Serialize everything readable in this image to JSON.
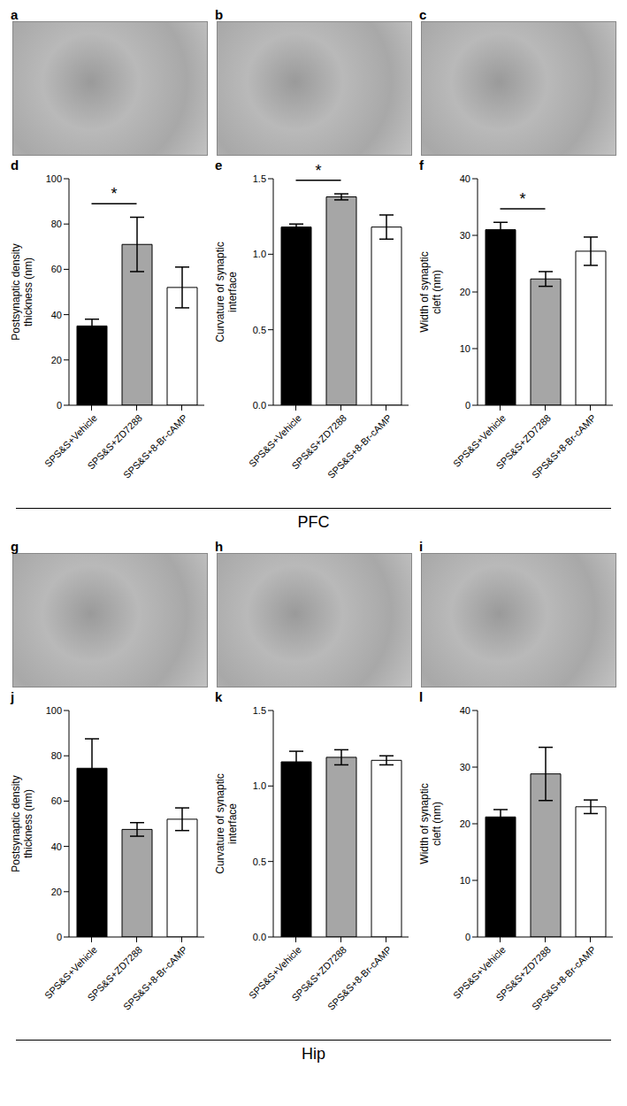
{
  "sections": [
    {
      "label": "PFC",
      "images": [
        "a",
        "b",
        "c"
      ]
    },
    {
      "label": "Hip",
      "images": [
        "g",
        "h",
        "i"
      ]
    }
  ],
  "chart_data": [
    {
      "type": "bar",
      "title": "d",
      "y_label": "Postsynaptic density thickness (nm)",
      "categories": [
        "SPS&S+Vehicle",
        "SPS&S+ZD7288",
        "SPS&S+8-Br-cAMP"
      ],
      "values": [
        35,
        71,
        52
      ],
      "errors": [
        3,
        12,
        9
      ],
      "colors": [
        "#000000",
        "#a6a6a6",
        "#ffffff"
      ],
      "ylim": [
        0,
        100
      ],
      "yticks": [
        0,
        20,
        40,
        60,
        80,
        100
      ],
      "annotations": [
        {
          "text": "*",
          "from": "SPS&S+Vehicle",
          "to": "SPS&S+ZD7288"
        }
      ]
    },
    {
      "type": "bar",
      "title": "e",
      "y_label": "Curvature of synaptic interface",
      "categories": [
        "SPS&S+Vehicle",
        "SPS&S+ZD7288",
        "SPS&S+8-Br-cAMP"
      ],
      "values": [
        1.18,
        1.38,
        1.18
      ],
      "errors": [
        0.02,
        0.02,
        0.08
      ],
      "colors": [
        "#000000",
        "#a6a6a6",
        "#ffffff"
      ],
      "ylim": [
        0,
        1.5
      ],
      "yticks": [
        {
          "value": 0,
          "label": "0.0"
        },
        {
          "value": 0.5,
          "label": "0.5"
        },
        {
          "value": 1,
          "label": "1.0"
        },
        {
          "value": 1.5,
          "label": "1.5"
        }
      ],
      "annotations": [
        {
          "text": "*",
          "from": "SPS&S+Vehicle",
          "to": "SPS&S+ZD7288"
        }
      ]
    },
    {
      "type": "bar",
      "title": "f",
      "y_label": "Width of synaptic cleft (nm)",
      "categories": [
        "SPS&S+Vehicle",
        "SPS&S+ZD7288",
        "SPS&S+8-Br-cAMP"
      ],
      "values": [
        31,
        22.3,
        27.2
      ],
      "errors": [
        1.3,
        1.3,
        2.5
      ],
      "colors": [
        "#000000",
        "#a6a6a6",
        "#ffffff"
      ],
      "ylim": [
        0,
        40
      ],
      "yticks": [
        0,
        10,
        20,
        30,
        40
      ],
      "annotations": [
        {
          "text": "*",
          "from": "SPS&S+Vehicle",
          "to": "SPS&S+ZD7288"
        }
      ]
    },
    {
      "type": "bar",
      "title": "j",
      "y_label": "Postsynaptic density thickness (nm)",
      "categories": [
        "SPS&S+Vehicle",
        "SPS&S+ZD7288",
        "SPS&S+8-Br-cAMP"
      ],
      "values": [
        74.5,
        47.5,
        52
      ],
      "errors": [
        13,
        3,
        5
      ],
      "colors": [
        "#000000",
        "#a6a6a6",
        "#ffffff"
      ],
      "ylim": [
        0,
        100
      ],
      "yticks": [
        0,
        20,
        40,
        60,
        80,
        100
      ]
    },
    {
      "type": "bar",
      "title": "k",
      "y_label": "Curvature of synaptic interface",
      "categories": [
        "SPS&S+Vehicle",
        "SPS&S+ZD7288",
        "SPS&S+8-Br-cAMP"
      ],
      "values": [
        1.16,
        1.19,
        1.17
      ],
      "errors": [
        0.07,
        0.05,
        0.03
      ],
      "colors": [
        "#000000",
        "#a6a6a6",
        "#ffffff"
      ],
      "ylim": [
        0,
        1.5
      ],
      "yticks": [
        {
          "value": 0,
          "label": "0.0"
        },
        {
          "value": 0.5,
          "label": "0.5"
        },
        {
          "value": 1,
          "label": "1.0"
        },
        {
          "value": 1.5,
          "label": "1.5"
        }
      ]
    },
    {
      "type": "bar",
      "title": "l",
      "y_label": "Width of synaptic cleft (nm)",
      "categories": [
        "SPS&S+Vehicle",
        "SPS&S+ZD7288",
        "SPS&S+8-Br-cAMP"
      ],
      "values": [
        21.2,
        28.8,
        23
      ],
      "errors": [
        1.3,
        4.7,
        1.2
      ],
      "colors": [
        "#000000",
        "#a6a6a6",
        "#ffffff"
      ],
      "ylim": [
        0,
        40
      ],
      "yticks": [
        0,
        10,
        20,
        30,
        40
      ]
    }
  ]
}
